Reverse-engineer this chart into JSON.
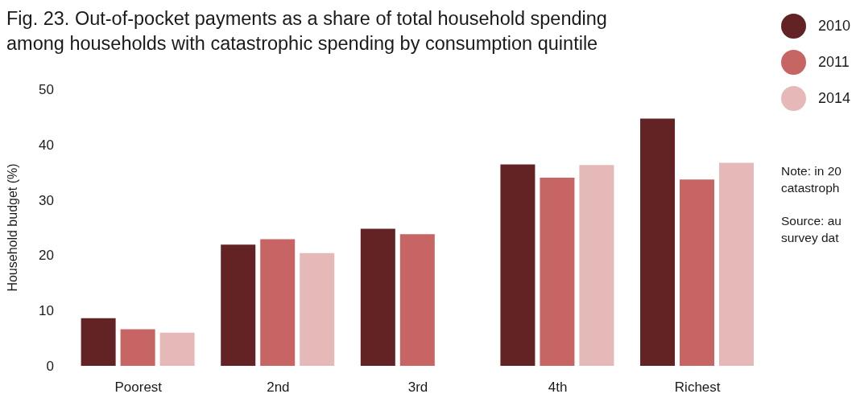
{
  "chart_data": {
    "type": "bar",
    "title": "Fig. 23. Out-of-pocket payments as a share of total household spending\namong households with catastrophic spending by consumption quintile",
    "ylabel": "Household budget (%)",
    "categories": [
      "Poorest",
      "2nd",
      "3rd",
      "4th",
      "Richest"
    ],
    "series": [
      {
        "name": "2010",
        "color": "#632324",
        "values": [
          8.6,
          21.9,
          24.8,
          36.4,
          44.7
        ]
      },
      {
        "name": "2011",
        "color": "#c66563",
        "values": [
          6.6,
          22.9,
          23.8,
          34.0,
          33.7
        ]
      },
      {
        "name": "2014",
        "color": "#e6b9b9",
        "values": [
          6.0,
          20.4,
          null,
          36.3,
          36.7
        ]
      }
    ],
    "ylim": [
      0,
      50
    ],
    "yticks": [
      0,
      10,
      20,
      30,
      40,
      50
    ],
    "grid": false,
    "legend": "top right",
    "annotations": [
      "Note: in 20\ncatastroph",
      "Source: au\nsurvey dat"
    ]
  }
}
